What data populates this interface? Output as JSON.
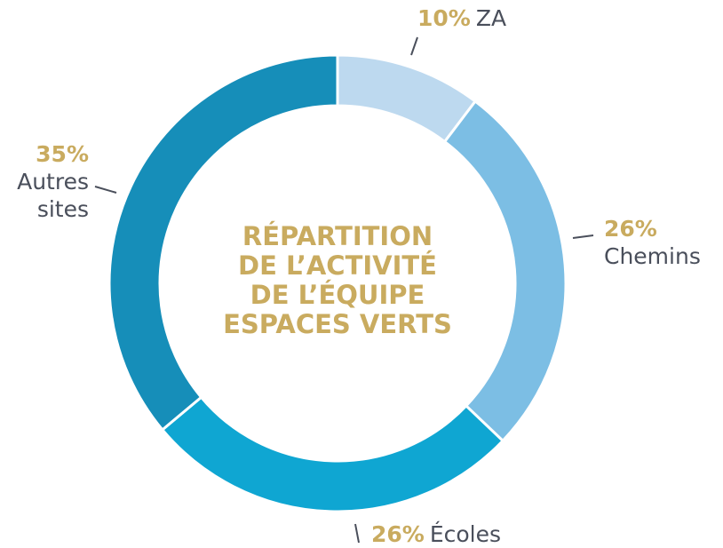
{
  "chart_data": {
    "type": "donut",
    "title": [
      "RÉPARTITION",
      "DE L’ACTIVITÉ",
      "DE L’ÉQUIPE",
      "ESPACES VERTS"
    ],
    "categories": [
      "ZA",
      "Chemins",
      "Écoles",
      "Autres sites"
    ],
    "values": [
      10,
      26,
      26,
      35
    ],
    "value_labels": [
      "10%",
      "26%",
      "26%",
      "35%"
    ],
    "colors": [
      "#bdd9ef",
      "#7cbee4",
      "#0fa6d2",
      "#168eb9"
    ]
  }
}
